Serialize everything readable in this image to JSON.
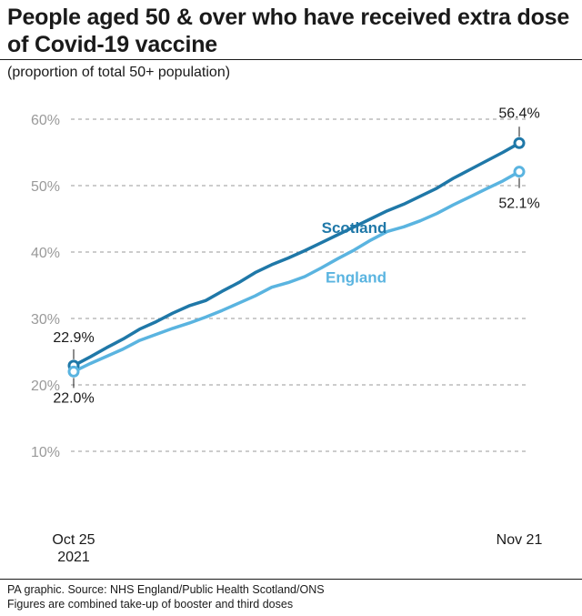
{
  "chart_data": {
    "type": "line",
    "title": "People aged 50 & over who have received extra dose of Covid-19 vaccine",
    "subtitle": "(proportion of total 50+ population)",
    "x_tick_labels": [
      {
        "line1": "Oct 25",
        "line2": "2021",
        "day": 0
      },
      {
        "line1": "Nov 21",
        "line2": "",
        "day": 27
      }
    ],
    "y_ticks": [
      10,
      20,
      30,
      40,
      50,
      60
    ],
    "y_tick_labels": [
      "10%",
      "20%",
      "30%",
      "40%",
      "50%",
      "60%"
    ],
    "ylim": [
      0,
      62
    ],
    "grid": true,
    "series": [
      {
        "name": "Scotland",
        "color": "#1f78a8",
        "start_label": "22.9%",
        "end_label": "56.4%",
        "x": [
          0,
          1,
          2,
          3,
          4,
          5,
          6,
          7,
          8,
          9,
          10,
          11,
          12,
          13,
          14,
          15,
          16,
          17,
          18,
          19,
          20,
          21,
          22,
          23,
          24,
          25,
          26,
          27
        ],
        "values": [
          22.9,
          24.2,
          25.6,
          26.9,
          28.4,
          29.5,
          30.8,
          31.9,
          32.7,
          34.1,
          35.4,
          36.9,
          38.1,
          39.1,
          40.2,
          41.4,
          42.6,
          43.8,
          45.0,
          46.2,
          47.2,
          48.4,
          49.6,
          51.1,
          52.4,
          53.7,
          55.0,
          56.4
        ]
      },
      {
        "name": "England",
        "color": "#5ab4e0",
        "start_label": "22.0%",
        "end_label": "52.1%",
        "x": [
          0,
          1,
          2,
          3,
          4,
          5,
          6,
          7,
          8,
          9,
          10,
          11,
          12,
          13,
          14,
          15,
          16,
          17,
          18,
          19,
          20,
          21,
          22,
          23,
          24,
          25,
          26,
          27
        ],
        "values": [
          22.0,
          23.2,
          24.3,
          25.4,
          26.7,
          27.6,
          28.5,
          29.3,
          30.2,
          31.2,
          32.3,
          33.4,
          34.7,
          35.4,
          36.3,
          37.6,
          39.0,
          40.3,
          41.8,
          43.1,
          43.8,
          44.7,
          45.8,
          47.1,
          48.3,
          49.5,
          50.7,
          52.1
        ]
      }
    ]
  },
  "footer": {
    "source": "PA graphic. Source: NHS England/Public Health Scotland/ONS",
    "note": "Figures are combined take-up of booster and third doses"
  }
}
